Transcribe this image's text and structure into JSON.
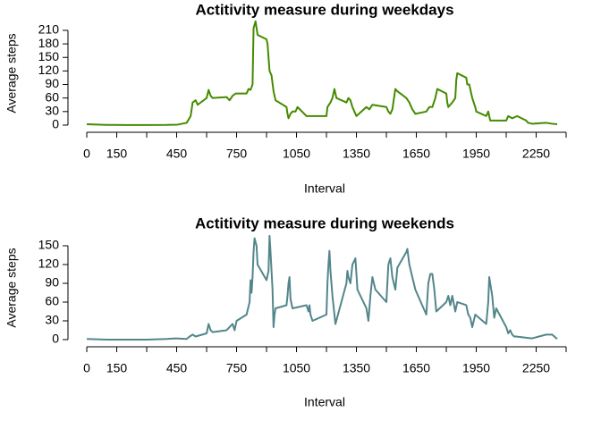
{
  "chart_data": [
    {
      "type": "line",
      "title": "Actitivity measure during weekdays",
      "x_label": "Interval",
      "y_label": "Average steps",
      "xlim": [
        -94.2,
        2449.2
      ],
      "ylim": [
        -9.2,
        239.6
      ],
      "xticks": [
        0,
        150,
        450,
        750,
        1050,
        1350,
        1650,
        1950,
        2250
      ],
      "xminor_ticks": [
        300,
        600,
        900,
        1200,
        1500,
        1800,
        2100,
        2400
      ],
      "yticks": [
        0,
        30,
        60,
        90,
        120,
        150,
        180,
        210
      ],
      "x": [
        0,
        100,
        200,
        300,
        400,
        455,
        500,
        520,
        530,
        545,
        555,
        600,
        610,
        620,
        630,
        700,
        715,
        730,
        745,
        800,
        810,
        820,
        830,
        835,
        845,
        855,
        900,
        905,
        915,
        925,
        935,
        945,
        1000,
        1005,
        1010,
        1020,
        1030,
        1045,
        1055,
        1100,
        1200,
        1205,
        1220,
        1230,
        1240,
        1250,
        1300,
        1310,
        1320,
        1330,
        1340,
        1350,
        1400,
        1415,
        1430,
        1500,
        1510,
        1520,
        1530,
        1545,
        1555,
        1600,
        1615,
        1630,
        1645,
        1700,
        1715,
        1730,
        1745,
        1755,
        1800,
        1805,
        1810,
        1830,
        1845,
        1850,
        1855,
        1900,
        1905,
        1915,
        1930,
        1945,
        1950,
        2000,
        2010,
        2020,
        2100,
        2110,
        2130,
        2155,
        2200,
        2210,
        2230,
        2300,
        2330,
        2355
      ],
      "series": [
        {
          "name": "weekday",
          "color": "#458b00",
          "values": [
            2,
            0.5,
            0.2,
            0.1,
            0.3,
            1,
            5,
            20,
            50,
            55,
            45,
            60,
            78,
            65,
            60,
            62,
            55,
            65,
            70,
            70,
            80,
            78,
            90,
            215,
            230,
            200,
            190,
            180,
            120,
            110,
            75,
            55,
            40,
            25,
            15,
            25,
            30,
            30,
            40,
            20,
            20,
            40,
            50,
            60,
            80,
            60,
            50,
            60,
            55,
            40,
            30,
            20,
            40,
            35,
            45,
            40,
            30,
            25,
            35,
            80,
            75,
            60,
            50,
            35,
            25,
            30,
            40,
            40,
            60,
            80,
            70,
            50,
            40,
            50,
            60,
            100,
            115,
            105,
            90,
            90,
            60,
            40,
            30,
            20,
            30,
            10,
            10,
            20,
            15,
            20,
            10,
            5,
            3,
            5,
            3,
            2
          ]
        }
      ]
    },
    {
      "type": "line",
      "title": "Actitivity measure during weekends",
      "x_label": "Interval",
      "y_label": "Average steps",
      "xlim": [
        -94.2,
        2449.2
      ],
      "ylim": [
        -6.6,
        172.6
      ],
      "xticks": [
        0,
        150,
        450,
        750,
        1050,
        1350,
        1650,
        1950,
        2250
      ],
      "xminor_ticks": [
        300,
        600,
        900,
        1200,
        1500,
        1800,
        2100,
        2400
      ],
      "yticks": [
        0,
        30,
        60,
        90,
        120,
        150
      ],
      "x": [
        0,
        100,
        200,
        300,
        400,
        445,
        500,
        515,
        530,
        545,
        600,
        610,
        620,
        630,
        700,
        715,
        730,
        740,
        750,
        800,
        815,
        820,
        825,
        830,
        835,
        840,
        850,
        855,
        900,
        910,
        915,
        920,
        925,
        930,
        935,
        940,
        945,
        1000,
        1005,
        1010,
        1015,
        1020,
        1030,
        1100,
        1110,
        1115,
        1120,
        1130,
        1200,
        1205,
        1210,
        1215,
        1220,
        1230,
        1245,
        1300,
        1305,
        1310,
        1320,
        1330,
        1345,
        1355,
        1400,
        1410,
        1420,
        1430,
        1445,
        1500,
        1510,
        1520,
        1530,
        1545,
        1555,
        1600,
        1605,
        1615,
        1630,
        1645,
        1700,
        1710,
        1720,
        1730,
        1740,
        1750,
        1800,
        1810,
        1820,
        1830,
        1845,
        1855,
        1900,
        1910,
        1920,
        1930,
        1945,
        2000,
        2010,
        2015,
        2020,
        2030,
        2040,
        2050,
        2100,
        2110,
        2120,
        2130,
        2140,
        2150,
        2200,
        2230,
        2300,
        2330,
        2355
      ],
      "series": [
        {
          "name": "weekend",
          "color": "#53868b",
          "values": [
            1,
            0,
            0,
            0,
            1,
            2,
            1,
            5,
            8,
            5,
            10,
            25,
            15,
            12,
            15,
            20,
            25,
            15,
            30,
            40,
            60,
            95,
            75,
            100,
            140,
            162,
            150,
            120,
            95,
            110,
            166,
            140,
            110,
            80,
            20,
            40,
            50,
            55,
            70,
            90,
            100,
            65,
            50,
            55,
            45,
            55,
            40,
            30,
            40,
            90,
            120,
            142,
            110,
            70,
            25,
            90,
            110,
            100,
            90,
            120,
            130,
            80,
            50,
            30,
            70,
            100,
            80,
            60,
            120,
            130,
            100,
            80,
            115,
            140,
            145,
            120,
            100,
            80,
            40,
            90,
            105,
            105,
            80,
            45,
            60,
            70,
            55,
            70,
            45,
            60,
            55,
            40,
            35,
            20,
            40,
            25,
            60,
            100,
            90,
            70,
            35,
            50,
            20,
            10,
            15,
            8,
            5,
            5,
            3,
            2,
            8,
            8,
            1
          ]
        }
      ]
    }
  ]
}
